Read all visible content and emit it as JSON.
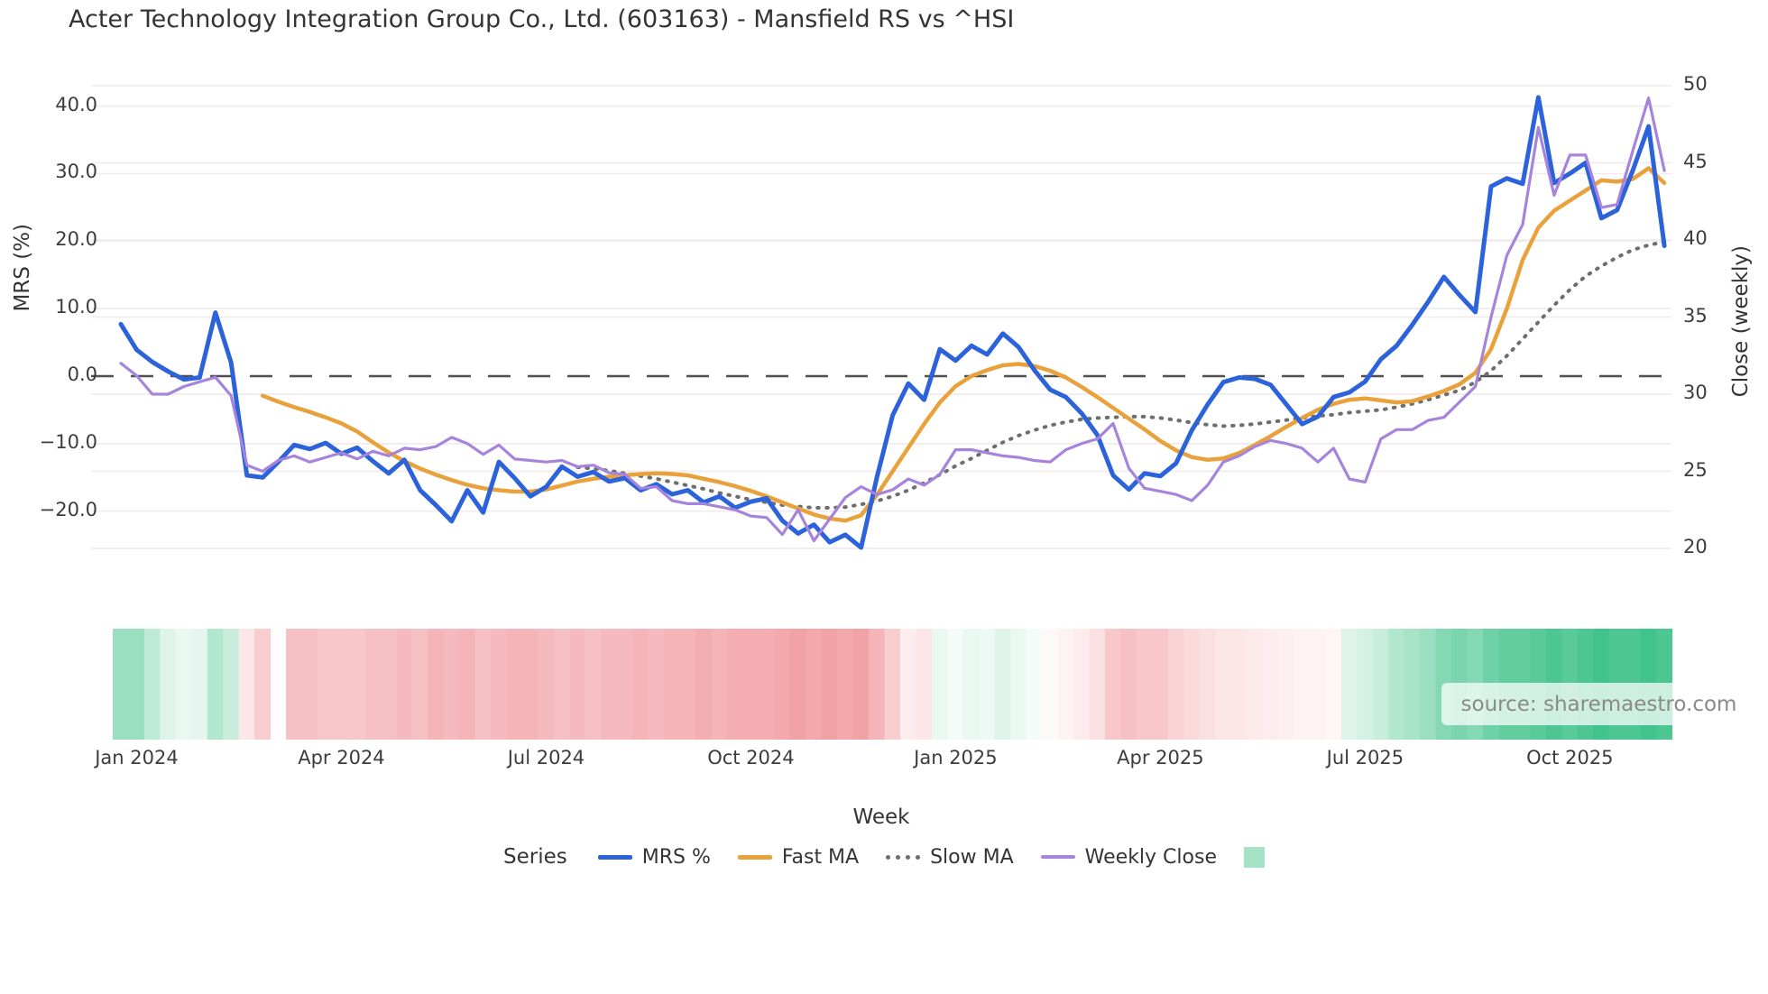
{
  "title": "Acter Technology Integration Group Co., Ltd. (603163) - Mansfield RS vs ^HSI",
  "source_note": "source: sharemaestro.com",
  "colors": {
    "mrs": "#2c63da",
    "fast_ma": "#e9a23b",
    "slow_ma": "#6e6e6e",
    "weekly_close": "#a684dc",
    "zero_line": "#4f4f4f",
    "gridline": "#f1ebee",
    "heat_positive": "#21b877",
    "heat_negative": "#ee8288",
    "legend_square": "#a5e3c6"
  },
  "legend": {
    "title": "Series",
    "items": [
      {
        "label": "MRS %",
        "style": "solid",
        "color": "#2c63da"
      },
      {
        "label": "Fast MA",
        "style": "solid",
        "color": "#e9a23b"
      },
      {
        "label": "Slow MA",
        "style": "dotted",
        "color": "#6e6e6e"
      },
      {
        "label": "Weekly Close",
        "style": "thin",
        "color": "#a684dc"
      },
      {
        "label": "",
        "style": "square",
        "color": "#a5e3c6"
      }
    ]
  },
  "chart_data": {
    "type": "line",
    "title": "Acter Technology Integration Group Co., Ltd. (603163) - Mansfield RS vs ^HSI",
    "xlabel": "Week",
    "ylabel_left": "MRS (%)",
    "ylabel_right": "Close (weekly)",
    "grid": "horizontal",
    "legend_position": "bottom-center",
    "ylim_left": [
      -27,
      42
    ],
    "ylim_right": [
      19.5,
      50.5
    ],
    "x_tick_labels": [
      "Jan 2024",
      "Apr 2024",
      "Jul 2024",
      "Oct 2024",
      "Jan 2025",
      "Apr 2025",
      "Jul 2025",
      "Oct 2025"
    ],
    "x_tick_weeks": [
      3,
      16,
      29,
      42,
      55,
      68,
      81,
      94
    ],
    "y_left_ticks": [
      40,
      30,
      20,
      10,
      0,
      -10,
      -20
    ],
    "y_left_tick_labels": [
      "40.0",
      "30.0",
      "20.0",
      "10.0",
      "0.0",
      "−10.0",
      "−20.0"
    ],
    "y_right_ticks": [
      50,
      45,
      40,
      35,
      30,
      25,
      20
    ],
    "y_right_tick_labels": [
      "50",
      "45",
      "40",
      "35",
      "30",
      "25",
      "20"
    ],
    "zero_reference_line": 0,
    "weeks_total": 101,
    "series": [
      {
        "name": "MRS %",
        "axis": "left",
        "style": "solid",
        "color": "#2c63da",
        "values": [
          null,
          null,
          7.7,
          3.9,
          2.1,
          0.7,
          -0.5,
          -0.2,
          9.4,
          2.0,
          -14.7,
          -15.0,
          -12.7,
          -10.2,
          -10.8,
          -9.9,
          -11.5,
          -10.6,
          -12.6,
          -14.4,
          -12.4,
          -16.9,
          -19.1,
          -21.5,
          -16.9,
          -20.2,
          -12.7,
          -15.1,
          -17.8,
          -16.4,
          -13.4,
          -14.9,
          -14.2,
          -15.6,
          -15.1,
          -16.9,
          -16.0,
          -17.5,
          -16.9,
          -18.7,
          -17.8,
          -19.5,
          -18.6,
          -18.1,
          -21.4,
          -23.3,
          -22.0,
          -24.6,
          -23.5,
          -25.4,
          -15.0,
          -5.8,
          -1.1,
          -3.5,
          4.0,
          2.3,
          4.5,
          3.2,
          6.3,
          4.3,
          0.9,
          -2.0,
          -3.1,
          -5.5,
          -8.7,
          -14.7,
          -16.8,
          -14.4,
          -14.8,
          -12.9,
          -8.0,
          -4.2,
          -0.9,
          -0.2,
          -0.4,
          -1.3,
          -4.2,
          -7.1,
          -6.0,
          -3.1,
          -2.4,
          -0.8,
          2.5,
          4.5,
          7.6,
          11.0,
          14.7,
          12.0,
          9.5,
          28.1,
          29.3,
          28.5,
          41.3,
          28.6,
          30.0,
          31.6,
          23.4,
          24.6,
          30.5,
          37.0,
          19.3
        ]
      },
      {
        "name": "Fast MA",
        "axis": "left",
        "style": "solid",
        "color": "#e9a23b",
        "values": [
          null,
          null,
          null,
          null,
          null,
          null,
          null,
          null,
          null,
          null,
          null,
          -2.9,
          -3.8,
          -4.6,
          -5.3,
          -6.1,
          -7.0,
          -8.2,
          -9.8,
          -11.3,
          -12.6,
          -13.7,
          -14.6,
          -15.4,
          -16.1,
          -16.6,
          -16.9,
          -17.1,
          -17.1,
          -16.8,
          -16.2,
          -15.6,
          -15.2,
          -14.9,
          -14.7,
          -14.5,
          -14.4,
          -14.5,
          -14.7,
          -15.2,
          -15.7,
          -16.3,
          -17.0,
          -17.8,
          -18.7,
          -19.6,
          -20.5,
          -21.1,
          -21.4,
          -20.6,
          -17.6,
          -14.1,
          -10.6,
          -7.1,
          -3.9,
          -1.5,
          0.0,
          0.9,
          1.6,
          1.8,
          1.5,
          0.8,
          -0.2,
          -1.6,
          -3.1,
          -4.7,
          -6.3,
          -7.9,
          -9.6,
          -11.0,
          -12.0,
          -12.4,
          -12.2,
          -11.4,
          -10.2,
          -8.9,
          -7.5,
          -6.2,
          -5.0,
          -4.1,
          -3.5,
          -3.3,
          -3.6,
          -3.9,
          -3.7,
          -3.0,
          -2.2,
          -1.2,
          0.5,
          4.0,
          10.0,
          17.2,
          22.0,
          24.5,
          26.0,
          27.5,
          29.0,
          28.8,
          29.2,
          30.8,
          28.6
        ]
      },
      {
        "name": "Slow MA",
        "axis": "left",
        "style": "dotted",
        "color": "#6e6e6e",
        "values": [
          null,
          null,
          null,
          null,
          null,
          null,
          null,
          null,
          null,
          null,
          null,
          null,
          null,
          null,
          null,
          null,
          null,
          null,
          null,
          null,
          null,
          null,
          null,
          null,
          null,
          null,
          null,
          null,
          null,
          null,
          null,
          -13.5,
          -13.7,
          -14.0,
          -14.4,
          -14.8,
          -15.2,
          -15.7,
          -16.2,
          -16.7,
          -17.3,
          -17.8,
          -18.3,
          -18.7,
          -19.1,
          -19.3,
          -19.5,
          -19.5,
          -19.4,
          -19.0,
          -18.5,
          -17.8,
          -16.9,
          -15.8,
          -14.6,
          -13.3,
          -12.2,
          -11.0,
          -9.8,
          -8.8,
          -8.0,
          -7.3,
          -6.8,
          -6.4,
          -6.2,
          -6.1,
          -6.0,
          -6.0,
          -6.2,
          -6.5,
          -6.9,
          -7.2,
          -7.4,
          -7.3,
          -7.1,
          -6.8,
          -6.5,
          -6.2,
          -5.9,
          -5.7,
          -5.4,
          -5.2,
          -5.0,
          -4.6,
          -4.1,
          -3.5,
          -2.8,
          -2.1,
          -0.9,
          0.8,
          3.0,
          5.5,
          8.0,
          10.5,
          12.8,
          14.8,
          16.3,
          17.6,
          18.7,
          19.4,
          19.9
        ]
      },
      {
        "name": "Weekly Close",
        "axis": "right",
        "style": "thin",
        "color": "#a684dc",
        "values": [
          null,
          null,
          32.0,
          31.2,
          30.0,
          30.0,
          30.5,
          30.8,
          31.1,
          29.9,
          25.4,
          25.0,
          25.7,
          26.0,
          25.6,
          25.9,
          26.2,
          25.8,
          26.3,
          26.0,
          26.5,
          26.4,
          26.6,
          27.2,
          26.8,
          26.1,
          26.7,
          25.8,
          25.7,
          25.6,
          25.7,
          25.3,
          25.4,
          24.9,
          24.8,
          23.9,
          24.0,
          23.1,
          22.9,
          22.9,
          22.7,
          22.5,
          22.1,
          22.0,
          20.9,
          22.5,
          20.5,
          21.9,
          23.3,
          24.0,
          23.5,
          23.8,
          24.5,
          24.1,
          24.8,
          26.4,
          26.4,
          26.2,
          26.0,
          25.9,
          25.7,
          25.6,
          26.4,
          26.8,
          27.1,
          28.1,
          25.2,
          23.9,
          23.7,
          23.5,
          23.1,
          24.1,
          25.6,
          26.0,
          26.6,
          27.0,
          26.8,
          26.5,
          25.6,
          26.5,
          24.5,
          24.3,
          27.1,
          27.7,
          27.7,
          28.3,
          28.5,
          29.5,
          30.5,
          35.0,
          39.0,
          41.0,
          47.3,
          42.9,
          45.5,
          45.5,
          42.1,
          42.3,
          45.8,
          49.2,
          44.5
        ]
      }
    ],
    "heat_strip": {
      "description": "weekly relative-strength heat cells, -1 strong red to +1 strong green, null = missing week (white gap)",
      "values": [
        null,
        null,
        0.45,
        0.45,
        0.3,
        0.15,
        0.1,
        0.12,
        0.35,
        0.25,
        -0.2,
        -0.4,
        null,
        -0.5,
        -0.5,
        -0.45,
        -0.45,
        -0.45,
        -0.5,
        -0.5,
        -0.55,
        -0.5,
        -0.6,
        -0.55,
        -0.6,
        -0.5,
        -0.55,
        -0.6,
        -0.6,
        -0.55,
        -0.5,
        -0.55,
        -0.5,
        -0.55,
        -0.55,
        -0.6,
        -0.55,
        -0.6,
        -0.6,
        -0.65,
        -0.6,
        -0.65,
        -0.65,
        -0.65,
        -0.7,
        -0.75,
        -0.7,
        -0.75,
        -0.7,
        -0.75,
        -0.6,
        -0.4,
        -0.15,
        -0.2,
        0.1,
        0.05,
        0.1,
        0.08,
        0.15,
        0.1,
        0.05,
        -0.05,
        -0.1,
        -0.15,
        -0.25,
        -0.45,
        -0.5,
        -0.45,
        -0.45,
        -0.35,
        -0.3,
        -0.25,
        -0.2,
        -0.2,
        -0.18,
        -0.15,
        -0.12,
        -0.1,
        -0.1,
        -0.08,
        0.15,
        0.2,
        0.25,
        0.35,
        0.4,
        0.45,
        0.55,
        0.6,
        0.55,
        0.65,
        0.7,
        0.7,
        0.75,
        0.8,
        0.75,
        0.8,
        0.85,
        0.8,
        0.8,
        0.85,
        0.8
      ]
    }
  }
}
